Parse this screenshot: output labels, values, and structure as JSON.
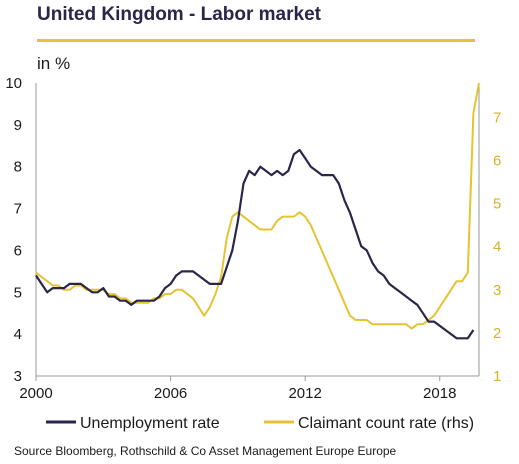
{
  "header": {
    "title": "United Kingdom - Labor market",
    "unit": "in %"
  },
  "source": "Source Bloomberg, Rothschild  & Co Asset Management Europe Europe",
  "colors": {
    "unemployment": "#2b2649",
    "claimant": "#e5c332",
    "axis": "#9a9a9a",
    "right_tick": "#d4b22b"
  },
  "chart_data": {
    "type": "line",
    "title": "United Kingdom - Labor market",
    "ylabel": "in %",
    "xlim": [
      2000,
      2019.75
    ],
    "x_ticks": [
      "2000",
      "2006",
      "2012",
      "2018"
    ],
    "ylim": [
      3,
      10
    ],
    "y_ticks": [
      "3",
      "4",
      "5",
      "6",
      "7",
      "8",
      "9",
      "10"
    ],
    "y2lim": [
      1,
      7.8
    ],
    "y2_ticks": [
      "1",
      "2",
      "3",
      "4",
      "5",
      "6",
      "7"
    ],
    "grid": false,
    "legend_position": "bottom",
    "series": [
      {
        "name": "Unemployment rate",
        "axis": "left",
        "x": [
          2000.0,
          2000.25,
          2000.5,
          2000.75,
          2001.0,
          2001.25,
          2001.5,
          2001.75,
          2002.0,
          2002.25,
          2002.5,
          2002.75,
          2003.0,
          2003.25,
          2003.5,
          2003.75,
          2004.0,
          2004.25,
          2004.5,
          2004.75,
          2005.0,
          2005.25,
          2005.5,
          2005.75,
          2006.0,
          2006.25,
          2006.5,
          2006.75,
          2007.0,
          2007.25,
          2007.5,
          2007.75,
          2008.0,
          2008.25,
          2008.5,
          2008.75,
          2009.0,
          2009.25,
          2009.5,
          2009.75,
          2010.0,
          2010.25,
          2010.5,
          2010.75,
          2011.0,
          2011.25,
          2011.5,
          2011.75,
          2012.0,
          2012.25,
          2012.5,
          2012.75,
          2013.0,
          2013.25,
          2013.5,
          2013.75,
          2014.0,
          2014.25,
          2014.5,
          2014.75,
          2015.0,
          2015.25,
          2015.5,
          2015.75,
          2016.0,
          2016.25,
          2016.5,
          2016.75,
          2017.0,
          2017.25,
          2017.5,
          2017.75,
          2018.0,
          2018.25,
          2018.5,
          2018.75,
          2019.0,
          2019.25,
          2019.5
        ],
        "values": [
          5.4,
          5.2,
          5.0,
          5.1,
          5.1,
          5.1,
          5.2,
          5.2,
          5.2,
          5.1,
          5.0,
          5.0,
          5.1,
          4.9,
          4.9,
          4.8,
          4.8,
          4.7,
          4.8,
          4.8,
          4.8,
          4.8,
          4.9,
          5.1,
          5.2,
          5.4,
          5.5,
          5.5,
          5.5,
          5.4,
          5.3,
          5.2,
          5.2,
          5.2,
          5.6,
          6.0,
          6.7,
          7.6,
          7.9,
          7.8,
          8.0,
          7.9,
          7.8,
          7.9,
          7.8,
          7.9,
          8.3,
          8.4,
          8.2,
          8.0,
          7.9,
          7.8,
          7.8,
          7.8,
          7.6,
          7.2,
          6.9,
          6.5,
          6.1,
          6.0,
          5.7,
          5.5,
          5.4,
          5.2,
          5.1,
          5.0,
          4.9,
          4.8,
          4.7,
          4.5,
          4.3,
          4.3,
          4.2,
          4.1,
          4.0,
          3.9,
          3.9,
          3.9,
          4.1
        ]
      },
      {
        "name": "Claimant count rate (rhs)",
        "axis": "right",
        "x": [
          2000.0,
          2000.25,
          2000.5,
          2000.75,
          2001.0,
          2001.25,
          2001.5,
          2001.75,
          2002.0,
          2002.25,
          2002.5,
          2002.75,
          2003.0,
          2003.25,
          2003.5,
          2003.75,
          2004.0,
          2004.25,
          2004.5,
          2004.75,
          2005.0,
          2005.25,
          2005.5,
          2005.75,
          2006.0,
          2006.25,
          2006.5,
          2006.75,
          2007.0,
          2007.25,
          2007.5,
          2007.75,
          2008.0,
          2008.25,
          2008.5,
          2008.75,
          2009.0,
          2009.25,
          2009.5,
          2009.75,
          2010.0,
          2010.25,
          2010.5,
          2010.75,
          2011.0,
          2011.25,
          2011.5,
          2011.75,
          2012.0,
          2012.25,
          2012.5,
          2012.75,
          2013.0,
          2013.25,
          2013.5,
          2013.75,
          2014.0,
          2014.25,
          2014.5,
          2014.75,
          2015.0,
          2015.25,
          2015.5,
          2015.75,
          2016.0,
          2016.25,
          2016.5,
          2016.75,
          2017.0,
          2017.25,
          2017.5,
          2017.75,
          2018.0,
          2018.25,
          2018.5,
          2018.75,
          2019.0,
          2019.25,
          2019.5,
          2019.75
        ],
        "values": [
          3.4,
          3.3,
          3.2,
          3.1,
          3.1,
          3.0,
          3.0,
          3.1,
          3.1,
          3.0,
          3.0,
          3.0,
          3.0,
          2.9,
          2.9,
          2.8,
          2.8,
          2.7,
          2.7,
          2.7,
          2.7,
          2.8,
          2.8,
          2.9,
          2.9,
          3.0,
          3.0,
          2.9,
          2.8,
          2.6,
          2.4,
          2.6,
          2.9,
          3.3,
          4.2,
          4.7,
          4.8,
          4.7,
          4.6,
          4.5,
          4.4,
          4.4,
          4.4,
          4.6,
          4.7,
          4.7,
          4.7,
          4.8,
          4.7,
          4.5,
          4.2,
          3.9,
          3.6,
          3.3,
          3.0,
          2.7,
          2.4,
          2.3,
          2.3,
          2.3,
          2.2,
          2.2,
          2.2,
          2.2,
          2.2,
          2.2,
          2.2,
          2.1,
          2.2,
          2.2,
          2.3,
          2.4,
          2.6,
          2.8,
          3.0,
          3.2,
          3.2,
          3.4,
          7.1,
          7.8
        ]
      }
    ]
  }
}
